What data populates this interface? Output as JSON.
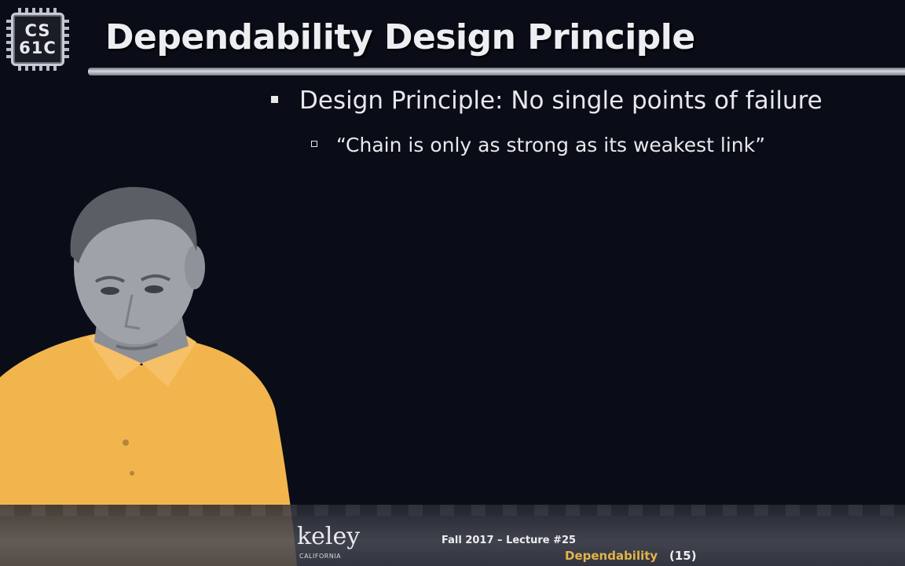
{
  "logo": {
    "line1": "CS",
    "line2": "61C"
  },
  "slide": {
    "title": "Dependability Design Principle",
    "bullet1": "Design Principle: No single points of failure",
    "bullet2": "“Chain is only as strong as its weakest link”"
  },
  "footer": {
    "institution": "keley",
    "institution_sub": "CALIFORNIA",
    "lecture": "Fall 2017 – Lecture #25",
    "topic": "Dependability",
    "page": "(15)"
  },
  "colors": {
    "background": "#0a0d17",
    "text": "#e6e8ec",
    "accent": "#e2b449",
    "shirt": "#f2b54d"
  }
}
